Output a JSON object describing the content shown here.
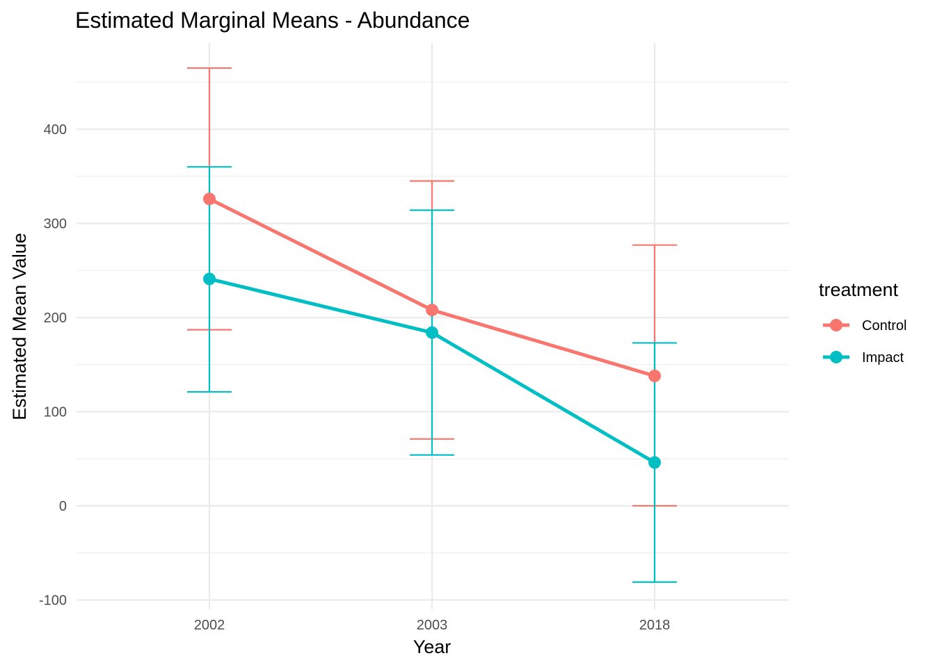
{
  "chart_data": {
    "type": "line",
    "title": "Estimated Marginal Means - Abundance",
    "xlabel": "Year",
    "ylabel": "Estimated Mean Value",
    "categories": [
      "2002",
      "2003",
      "2018"
    ],
    "y_ticks": [
      -100,
      0,
      100,
      200,
      300,
      400
    ],
    "ylim": [
      -125,
      495
    ],
    "grid": true,
    "error_bars": true,
    "legend": {
      "title": "treatment",
      "position": "right"
    },
    "series": [
      {
        "name": "Control",
        "color": "#F8766D",
        "values": [
          326,
          208,
          138
        ],
        "lower": [
          187,
          71,
          0
        ],
        "upper": [
          465,
          345,
          277
        ]
      },
      {
        "name": "Impact",
        "color": "#00BFC4",
        "values": [
          241,
          184,
          46
        ],
        "lower": [
          121,
          54,
          -81
        ],
        "upper": [
          360,
          314,
          173
        ]
      }
    ]
  }
}
